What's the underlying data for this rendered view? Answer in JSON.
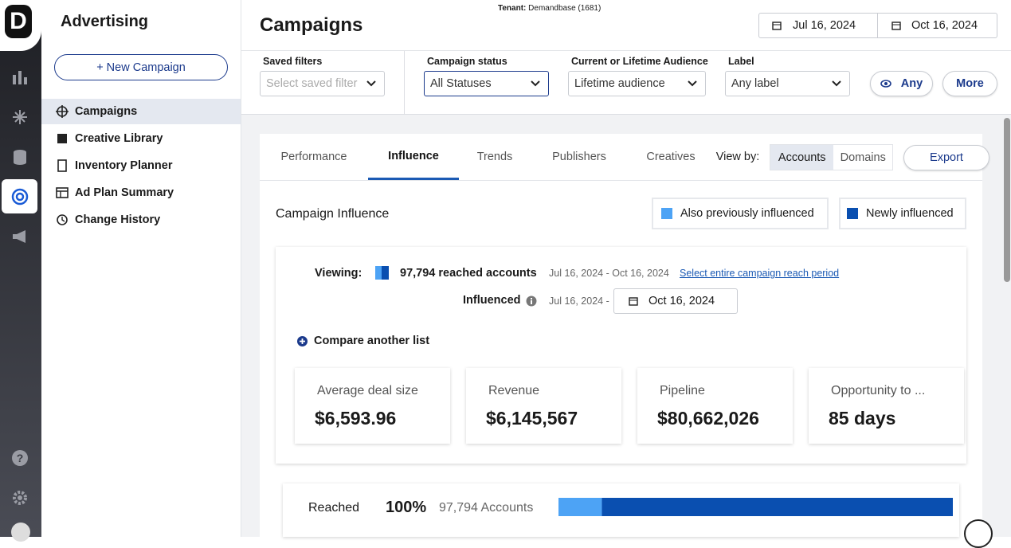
{
  "sidebar": {
    "logo": "D"
  },
  "nav": {
    "title": "Advertising",
    "new_button": "+ New Campaign",
    "items": [
      "Campaigns",
      "Creative Library",
      "Inventory Planner",
      "Ad Plan Summary",
      "Change History"
    ]
  },
  "header": {
    "tenant_label": "Tenant:",
    "tenant": "Demandbase (1681)",
    "title": "Campaigns",
    "date_start": "Jul 16, 2024",
    "date_end": "Oct 16, 2024"
  },
  "filters": [
    {
      "label": "Saved filters",
      "value": "Select saved filter"
    },
    {
      "label": "Campaign status",
      "value": "All Statuses"
    },
    {
      "label": "Current or Lifetime Audience",
      "value": "Lifetime audience"
    },
    {
      "label": "Label",
      "value": "Any label"
    }
  ],
  "any_button": "Any",
  "more_button": "More",
  "tabs": [
    "Performance",
    "Influence",
    "Trends",
    "Publishers",
    "Creatives"
  ],
  "view_by_label": "View by:",
  "view_by_options": [
    "Accounts",
    "Domains"
  ],
  "export": "Export",
  "influence": {
    "title": "Campaign Influence",
    "legend": [
      "Also previously influenced",
      "Newly influenced"
    ],
    "viewing_label": "Viewing:",
    "reached_accounts": "97,794 reached accounts",
    "range": "Jul 16, 2024 - Oct 16, 2024",
    "link": "Select entire campaign reach period",
    "influenced_label": "Influenced",
    "influenced_start": "Jul 16, 2024 -",
    "influenced_end": "Oct 16, 2024",
    "compare": "Compare another list"
  },
  "metrics": [
    {
      "label": "Average deal size",
      "value": "$6,593.96"
    },
    {
      "label": "Revenue",
      "value": "$6,145,567"
    },
    {
      "label": "Pipeline",
      "value": "$80,662,026"
    },
    {
      "label": "Opportunity to ...",
      "value": "85 days"
    }
  ],
  "reached": {
    "label": "Reached",
    "percent": "100%",
    "accounts": "97,794 Accounts",
    "segments": [
      11,
      89
    ]
  }
}
